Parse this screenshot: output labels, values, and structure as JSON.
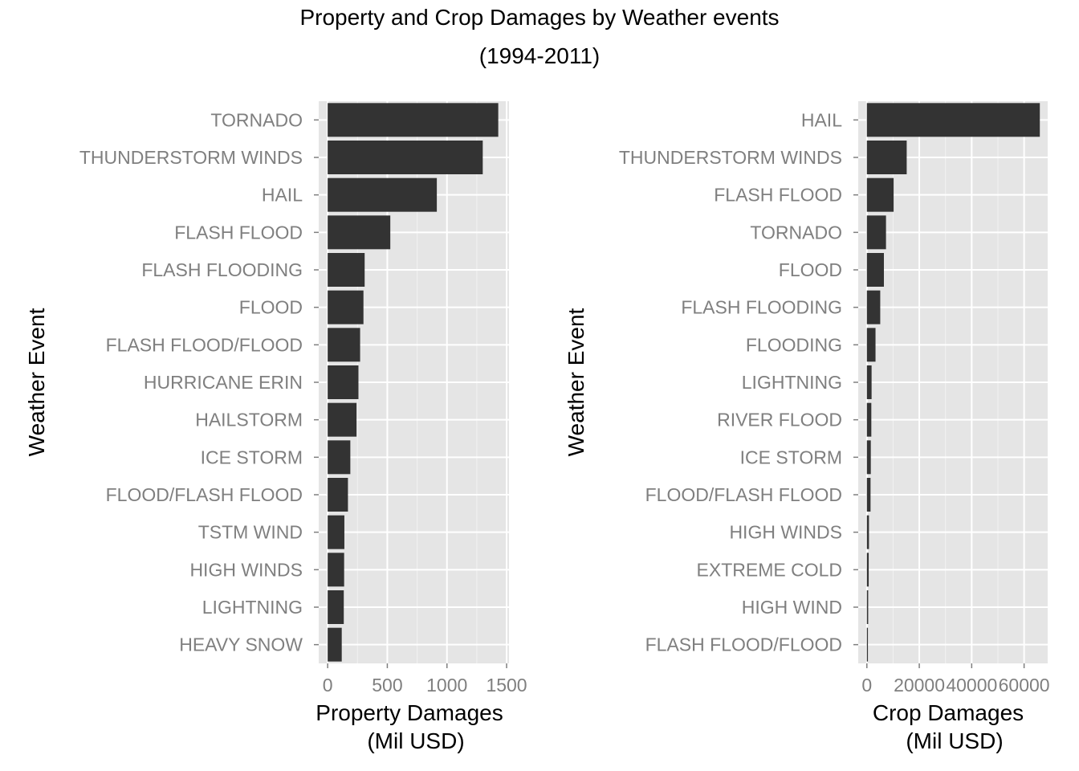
{
  "figure": {
    "title_line1": "Property and Crop Damages by Weather events",
    "title_line2": "(1994-2011)"
  },
  "chart_data": [
    {
      "type": "bar",
      "orientation": "horizontal",
      "title": "",
      "ylabel": "Weather Event",
      "xlabel_line1": "Property Damages",
      "xlabel_line2": "(Mil USD)",
      "xlim": [
        -75,
        1520
      ],
      "xticks": [
        0,
        500,
        1000,
        1500
      ],
      "grid": true,
      "categories": [
        "TORNADO",
        "THUNDERSTORM WINDS",
        "HAIL",
        "FLASH FLOOD",
        "FLASH FLOODING",
        "FLOOD",
        "FLASH FLOOD/FLOOD",
        "HURRICANE ERIN",
        "HAILSTORM",
        "ICE STORM",
        "FLOOD/FLASH FLOOD",
        "TSTM WIND",
        "HIGH WINDS",
        "LIGHTNING",
        "HEAVY SNOW"
      ],
      "values": [
        1430,
        1300,
        915,
        525,
        310,
        300,
        272,
        258,
        242,
        190,
        170,
        140,
        138,
        135,
        118
      ]
    },
    {
      "type": "bar",
      "orientation": "horizontal",
      "title": "",
      "ylabel": "Weather Event",
      "xlabel_line1": "Crop Damages",
      "xlabel_line2": "(Mil USD)",
      "xlim": [
        -3300,
        69000
      ],
      "xticks": [
        0,
        20000,
        40000,
        60000
      ],
      "grid": true,
      "categories": [
        "HAIL",
        "THUNDERSTORM WINDS",
        "FLASH FLOOD",
        "TORNADO",
        "FLOOD",
        "FLASH FLOODING",
        "FLOODING",
        "LIGHTNING",
        "RIVER FLOOD",
        "ICE STORM",
        "FLOOD/FLASH FLOOD",
        "HIGH WINDS",
        "EXTREME COLD",
        "HIGH WIND",
        "FLASH FLOOD/FLOOD"
      ],
      "values": [
        66000,
        15200,
        10200,
        7300,
        6500,
        5100,
        3300,
        1800,
        1700,
        1500,
        1400,
        800,
        700,
        500,
        400
      ]
    }
  ]
}
